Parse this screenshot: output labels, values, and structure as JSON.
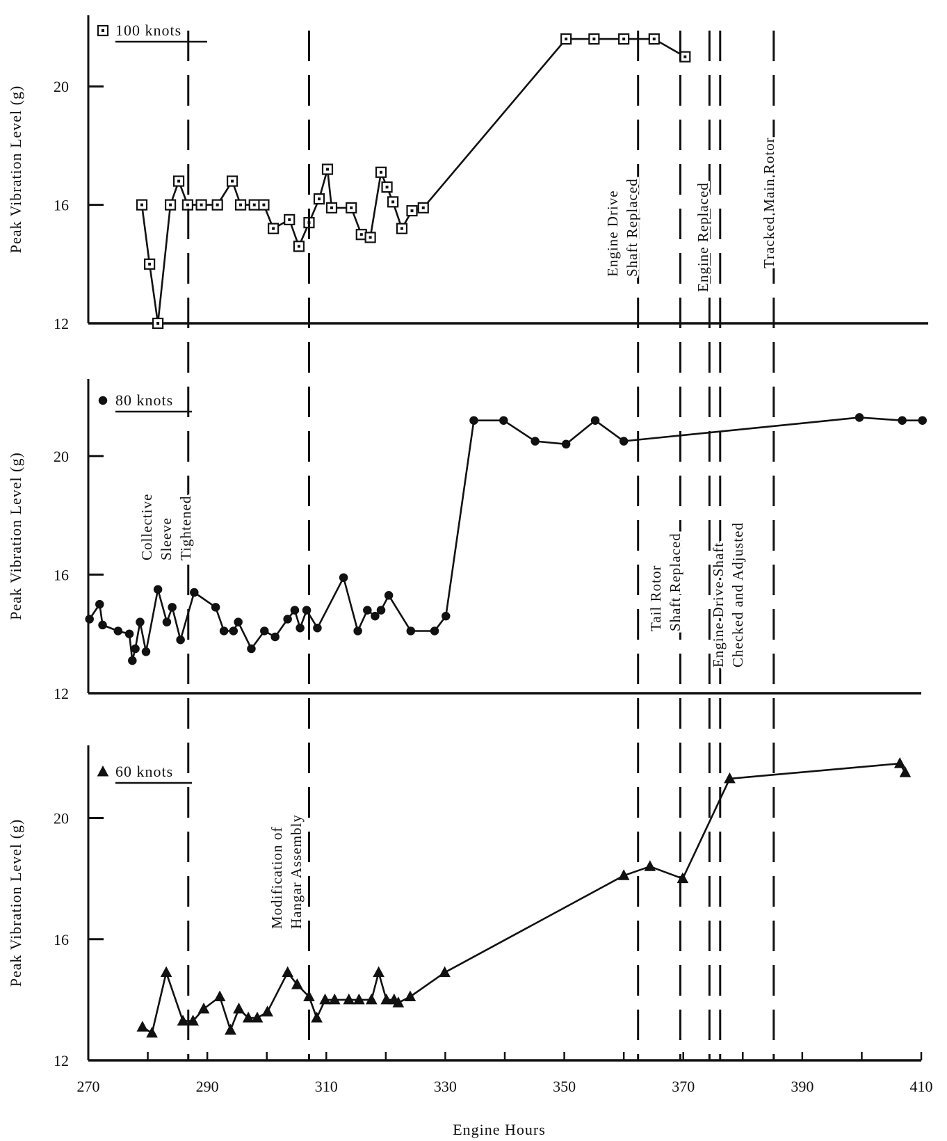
{
  "chart_data": {
    "type": "line",
    "xlabel": "Engine Hours",
    "x_ticks": [
      270,
      290,
      310,
      330,
      350,
      370,
      390,
      410
    ],
    "xlim": [
      270,
      410
    ],
    "colors": {
      "line": "#111111",
      "background": "#ffffff"
    },
    "panels": [
      {
        "name": "100 knots",
        "marker": "square",
        "ylabel": "Peak Vibration Level (g)",
        "yticks": [
          12,
          16,
          20
        ],
        "ylim": [
          12,
          22.4
        ],
        "points": [
          [
            279,
            16
          ],
          [
            280.3,
            14
          ],
          [
            281.7,
            12
          ],
          [
            283.8,
            16
          ],
          [
            285.2,
            16.8
          ],
          [
            286.7,
            16
          ],
          [
            289,
            16
          ],
          [
            291.7,
            16
          ],
          [
            294.2,
            16.8
          ],
          [
            295.6,
            16
          ],
          [
            297.9,
            16
          ],
          [
            299.5,
            16
          ],
          [
            301.1,
            15.2
          ],
          [
            303.8,
            15.5
          ],
          [
            305.4,
            14.6
          ],
          [
            307.1,
            15.4
          ],
          [
            308.8,
            16.2
          ],
          [
            310.2,
            17.2
          ],
          [
            310.9,
            15.9
          ],
          [
            314.2,
            15.9
          ],
          [
            315.9,
            15
          ],
          [
            317.4,
            14.9
          ],
          [
            319.2,
            17.1
          ],
          [
            320.2,
            16.6
          ],
          [
            321.2,
            16.1
          ],
          [
            322.7,
            15.2
          ],
          [
            324.4,
            15.8
          ],
          [
            326.3,
            15.9
          ],
          [
            350.3,
            21.6
          ],
          [
            355,
            21.6
          ],
          [
            360,
            21.6
          ],
          [
            365.1,
            21.6
          ],
          [
            370.3,
            21
          ]
        ]
      },
      {
        "name": "80 knots",
        "marker": "circle",
        "ylabel": "Peak Vibration Level (g)",
        "yticks": [
          12,
          16,
          20
        ],
        "ylim": [
          12,
          22.6
        ],
        "points": [
          [
            270.2,
            14.5
          ],
          [
            271.9,
            15.0
          ],
          [
            272.4,
            14.3
          ],
          [
            275,
            14.1
          ],
          [
            276.9,
            14.0
          ],
          [
            277.4,
            13.1
          ],
          [
            277.9,
            13.5
          ],
          [
            278.7,
            14.4
          ],
          [
            279.7,
            13.4
          ],
          [
            281.7,
            15.5
          ],
          [
            283.2,
            14.4
          ],
          [
            284.1,
            14.9
          ],
          [
            285.5,
            13.8
          ],
          [
            287.8,
            15.4
          ],
          [
            291.4,
            14.9
          ],
          [
            292.8,
            14.1
          ],
          [
            294.4,
            14.1
          ],
          [
            295.2,
            14.4
          ],
          [
            297.4,
            13.5
          ],
          [
            299.6,
            14.1
          ],
          [
            301.4,
            13.9
          ],
          [
            303.5,
            14.5
          ],
          [
            304.7,
            14.8
          ],
          [
            305.6,
            14.2
          ],
          [
            306.7,
            14.8
          ],
          [
            308.5,
            14.2
          ],
          [
            312.9,
            15.9
          ],
          [
            315.3,
            14.1
          ],
          [
            316.9,
            14.8
          ],
          [
            318.2,
            14.6
          ],
          [
            319.2,
            14.8
          ],
          [
            320.5,
            15.3
          ],
          [
            324.2,
            14.1
          ],
          [
            328.2,
            14.1
          ],
          [
            330.1,
            14.6
          ],
          [
            334.8,
            21.2
          ],
          [
            339.8,
            21.2
          ],
          [
            345.1,
            20.5
          ],
          [
            350.3,
            20.4
          ],
          [
            355.2,
            21.2
          ],
          [
            360,
            20.5
          ],
          [
            399.6,
            21.3
          ],
          [
            406.8,
            21.2
          ],
          [
            410.2,
            21.2
          ]
        ]
      },
      {
        "name": "60 knots",
        "marker": "triangle",
        "ylabel": "Peak Vibration Level (g)",
        "yticks": [
          12,
          16,
          20
        ],
        "ylim": [
          12,
          22.4
        ],
        "points": [
          [
            279.1,
            13.1
          ],
          [
            280.7,
            12.9
          ],
          [
            283.1,
            14.9
          ],
          [
            285.9,
            13.3
          ],
          [
            287.6,
            13.3
          ],
          [
            289.4,
            13.7
          ],
          [
            292.1,
            14.1
          ],
          [
            293.9,
            13.0
          ],
          [
            295.3,
            13.7
          ],
          [
            296.9,
            13.4
          ],
          [
            298.4,
            13.4
          ],
          [
            300.1,
            13.6
          ],
          [
            303.5,
            14.9
          ],
          [
            305.1,
            14.5
          ],
          [
            307.1,
            14.1
          ],
          [
            308.4,
            13.4
          ],
          [
            309.8,
            14.0
          ],
          [
            311.4,
            14.0
          ],
          [
            313.8,
            14.0
          ],
          [
            315.5,
            14.0
          ],
          [
            317.6,
            14.0
          ],
          [
            318.8,
            14.9
          ],
          [
            320.1,
            14.0
          ],
          [
            321.4,
            14.0
          ],
          [
            322.1,
            13.9
          ],
          [
            324.1,
            14.1
          ],
          [
            329.9,
            14.9
          ],
          [
            360,
            18.1
          ],
          [
            364.4,
            18.4
          ],
          [
            369.9,
            18.0
          ],
          [
            377.8,
            21.3
          ],
          [
            406.4,
            21.8
          ],
          [
            407.3,
            21.5
          ]
        ]
      }
    ],
    "events": [
      {
        "x": 286.8,
        "label": [
          "Collective",
          "Sleeve",
          "Tightened"
        ]
      },
      {
        "x": 307.1,
        "label": [
          "Modification of",
          "Hangar Assembly"
        ]
      },
      {
        "x": 362.4,
        "label": [
          "Engine Drive",
          "Shaft Replaced"
        ]
      },
      {
        "x": 369.5,
        "label": [
          "Tail Rotor",
          "Shaft Replaced"
        ]
      },
      {
        "x": 374.4,
        "label": [
          "Engine Replaced"
        ]
      },
      {
        "x": 376.2,
        "label": [
          "Engine Drive Shaft",
          "Checked and Adjusted"
        ]
      },
      {
        "x": 385.2,
        "label": [
          "Tracked Main Rotor"
        ]
      }
    ],
    "legend_placement": "top-left of each panel"
  }
}
